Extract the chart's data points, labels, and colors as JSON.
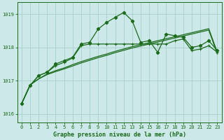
{
  "xlabel": "Graphe pression niveau de la mer (hPa)",
  "xlim": [
    -0.5,
    23.5
  ],
  "ylim": [
    1015.75,
    1019.35
  ],
  "yticks": [
    1016,
    1017,
    1018,
    1019
  ],
  "xticks": [
    0,
    1,
    2,
    3,
    4,
    5,
    6,
    7,
    8,
    9,
    10,
    11,
    12,
    13,
    14,
    15,
    16,
    17,
    18,
    19,
    20,
    21,
    22,
    23
  ],
  "bg_color": "#cde8e8",
  "line_color": "#1a6b1a",
  "grid_color": "#b8d8d8",
  "line1_x": [
    0,
    1,
    2,
    3,
    4,
    5,
    6,
    7,
    8,
    9,
    10,
    11,
    12,
    13,
    14,
    15,
    16,
    17,
    18,
    19,
    20,
    21,
    22,
    23
  ],
  "line1_y": [
    1016.3,
    1016.85,
    1017.15,
    1017.25,
    1017.5,
    1017.6,
    1017.7,
    1018.1,
    1018.15,
    1018.55,
    1018.75,
    1018.9,
    1019.05,
    1018.8,
    1018.15,
    1018.2,
    1017.85,
    1018.4,
    1018.35,
    1018.3,
    1018.0,
    1018.05,
    1018.2,
    1017.9
  ],
  "line2_x": [
    0,
    1,
    2,
    3,
    4,
    5,
    6,
    7,
    8,
    9,
    10,
    11,
    12,
    13,
    14,
    15,
    16,
    17,
    18,
    19,
    20,
    21,
    22,
    23
  ],
  "line2_y": [
    1016.3,
    1016.85,
    1017.15,
    1017.25,
    1017.45,
    1017.55,
    1017.68,
    1018.05,
    1018.1,
    1018.1,
    1018.1,
    1018.1,
    1018.1,
    1018.1,
    1018.1,
    1018.1,
    1018.1,
    1018.1,
    1018.2,
    1018.25,
    1017.9,
    1017.95,
    1018.05,
    1017.85
  ],
  "line3_x": [
    0,
    1,
    2,
    3,
    4,
    5,
    6,
    7,
    8,
    9,
    10,
    11,
    12,
    13,
    14,
    15,
    16,
    17,
    18,
    19,
    20,
    21,
    22,
    23
  ],
  "line3_y": [
    1016.3,
    1016.87,
    1017.05,
    1017.2,
    1017.3,
    1017.38,
    1017.48,
    1017.57,
    1017.65,
    1017.73,
    1017.8,
    1017.88,
    1017.95,
    1018.02,
    1018.08,
    1018.14,
    1018.2,
    1018.26,
    1018.32,
    1018.38,
    1018.44,
    1018.5,
    1018.56,
    1017.85
  ],
  "line4_x": [
    0,
    1,
    2,
    3,
    4,
    5,
    6,
    7,
    8,
    9,
    10,
    11,
    12,
    13,
    14,
    15,
    16,
    17,
    18,
    19,
    20,
    21,
    22,
    23
  ],
  "line4_y": [
    1016.3,
    1016.87,
    1017.05,
    1017.18,
    1017.27,
    1017.35,
    1017.44,
    1017.53,
    1017.61,
    1017.69,
    1017.76,
    1017.84,
    1017.91,
    1017.98,
    1018.04,
    1018.1,
    1018.16,
    1018.22,
    1018.28,
    1018.34,
    1018.4,
    1018.46,
    1018.52,
    1017.8
  ]
}
